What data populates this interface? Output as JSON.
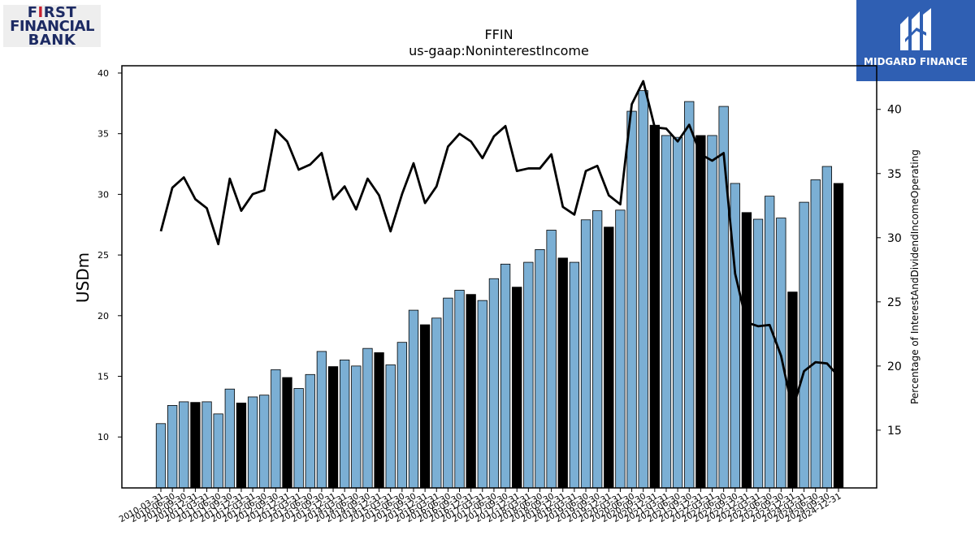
{
  "logos": {
    "left": {
      "line1_a": "F",
      "line1_accent": "I",
      "line1_b": "RST",
      "line2": "FINANCIAL",
      "line3": "BANK"
    },
    "right": {
      "text": "MIDGARD FINANCE"
    }
  },
  "chart_data": {
    "type": "bar",
    "title": "FFIN",
    "subtitle": "us-gaap:NoninterestIncome",
    "ylabel": "USDm",
    "y2label": "Percentage of InterestAndDividendIncomeOperating",
    "ylim": [
      5.8,
      40.6
    ],
    "y2lim": [
      10.5,
      43.4
    ],
    "yticks": [
      10,
      15,
      20,
      25,
      30,
      35,
      40
    ],
    "y2ticks": [
      15,
      20,
      25,
      30,
      35,
      40
    ],
    "colors": {
      "bar": "#7bafd4",
      "bar_q4": "#000000",
      "line": "#000000",
      "edge": "#000000"
    },
    "categories": [
      "2010-03-31",
      "2010-06-30",
      "2010-09-30",
      "2010-12-31",
      "2011-03-31",
      "2011-06-30",
      "2011-09-30",
      "2011-12-31",
      "2012-03-31",
      "2012-06-30",
      "2012-09-30",
      "2012-12-31",
      "2013-03-31",
      "2013-06-30",
      "2013-09-30",
      "2013-12-31",
      "2014-03-31",
      "2014-06-30",
      "2014-09-30",
      "2014-12-31",
      "2015-03-31",
      "2015-06-30",
      "2015-09-30",
      "2015-12-31",
      "2016-03-31",
      "2016-06-30",
      "2016-09-30",
      "2016-12-31",
      "2017-03-31",
      "2017-06-30",
      "2017-09-30",
      "2017-12-31",
      "2018-03-31",
      "2018-06-30",
      "2018-09-30",
      "2018-12-31",
      "2019-03-31",
      "2019-06-30",
      "2019-09-30",
      "2019-12-31",
      "2020-03-31",
      "2020-06-30",
      "2020-09-30",
      "2020-12-31",
      "2021-03-31",
      "2021-06-30",
      "2021-09-30",
      "2021-12-31",
      "2022-03-31",
      "2022-06-30",
      "2022-09-30",
      "2022-12-31",
      "2023-03-31",
      "2023-06-30",
      "2023-09-30",
      "2023-12-31",
      "2024-03-31",
      "2024-06-30",
      "2024-09-30",
      "2024-12-31"
    ],
    "values": [
      11.1,
      12.6,
      12.9,
      12.85,
      12.9,
      11.9,
      13.95,
      12.8,
      13.3,
      13.45,
      15.55,
      14.9,
      14.0,
      15.15,
      17.05,
      15.8,
      16.35,
      15.85,
      17.3,
      16.95,
      15.95,
      17.8,
      20.45,
      19.25,
      19.8,
      21.45,
      22.1,
      21.75,
      21.25,
      23.05,
      24.25,
      22.35,
      24.4,
      25.45,
      27.05,
      24.75,
      24.4,
      27.9,
      28.65,
      27.3,
      28.7,
      36.85,
      38.55,
      35.7,
      34.85,
      34.7,
      37.65,
      34.85,
      34.85,
      37.25,
      30.9,
      28.5,
      27.95,
      29.85,
      28.05,
      21.95,
      29.35,
      31.2,
      32.3,
      30.9
    ],
    "ratio_pct": [
      30.5,
      33.9,
      34.7,
      33.0,
      32.3,
      29.5,
      34.6,
      32.1,
      33.4,
      33.7,
      38.4,
      37.5,
      35.3,
      35.7,
      36.6,
      33.0,
      34.0,
      32.2,
      34.6,
      33.3,
      30.5,
      33.4,
      35.8,
      32.7,
      34.0,
      37.1,
      38.1,
      37.5,
      36.2,
      37.9,
      38.7,
      35.2,
      35.4,
      35.4,
      36.5,
      32.4,
      31.8,
      35.2,
      35.6,
      33.3,
      32.6,
      40.4,
      42.2,
      38.6,
      38.5,
      37.5,
      38.8,
      36.5,
      36.0,
      36.6,
      27.2,
      23.4,
      23.1,
      23.2,
      20.8,
      16.6,
      19.6,
      20.3,
      20.2,
      19.2
    ]
  }
}
